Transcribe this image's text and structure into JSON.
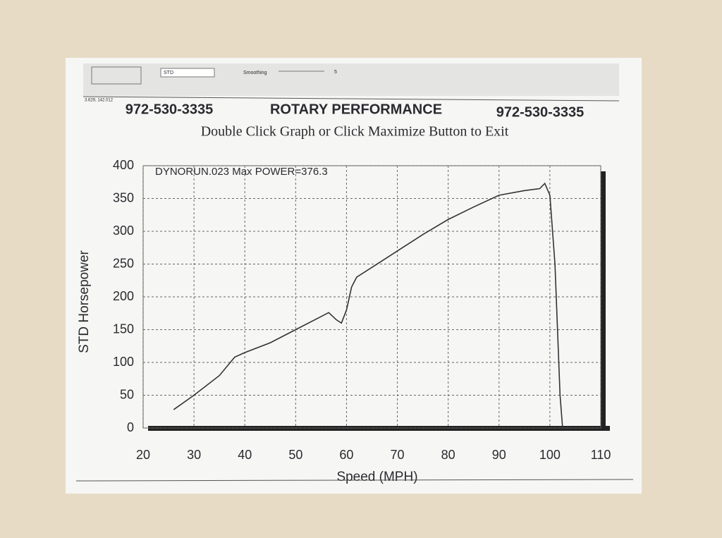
{
  "toolbar": {
    "dropdown": "STD",
    "smoothing_label": "Smoothing",
    "smoothing_value": 5,
    "coordinates": "3.629, 142.012"
  },
  "chart_data": {
    "type": "line",
    "phone_left": "972-530-3335",
    "title": "ROTARY PERFORMANCE",
    "phone_right": "972-530-3335",
    "subtitle": "Double Click Graph or Click Maximize Button to Exit",
    "annotation": "DYNORUN.023  Max POWER=376.3",
    "x_label": "Speed (MPH)",
    "y_label": "STD Horsepower",
    "x": [
      26,
      30,
      35,
      38,
      40,
      45,
      50,
      55,
      56.5,
      58,
      59,
      60,
      61,
      62,
      65,
      70,
      75,
      80,
      85,
      90,
      95,
      98,
      99,
      100,
      101,
      101.5,
      102,
      102.5
    ],
    "series": [
      {
        "name": "STD Horsepower",
        "color": "#333338",
        "values": [
          28,
          50,
          80,
          108,
          115,
          130,
          150,
          170,
          176,
          165,
          160,
          180,
          215,
          230,
          245,
          270,
          295,
          318,
          337,
          355,
          362,
          365,
          373,
          355,
          250,
          150,
          50,
          0
        ]
      }
    ],
    "xlim": [
      20,
      110
    ],
    "xticks": [
      20,
      30,
      40,
      50,
      60,
      70,
      80,
      90,
      100,
      110
    ],
    "ylim": [
      0,
      400
    ],
    "yticks": [
      0,
      50,
      100,
      150,
      200,
      250,
      300,
      350,
      400
    ],
    "grid": true
  }
}
